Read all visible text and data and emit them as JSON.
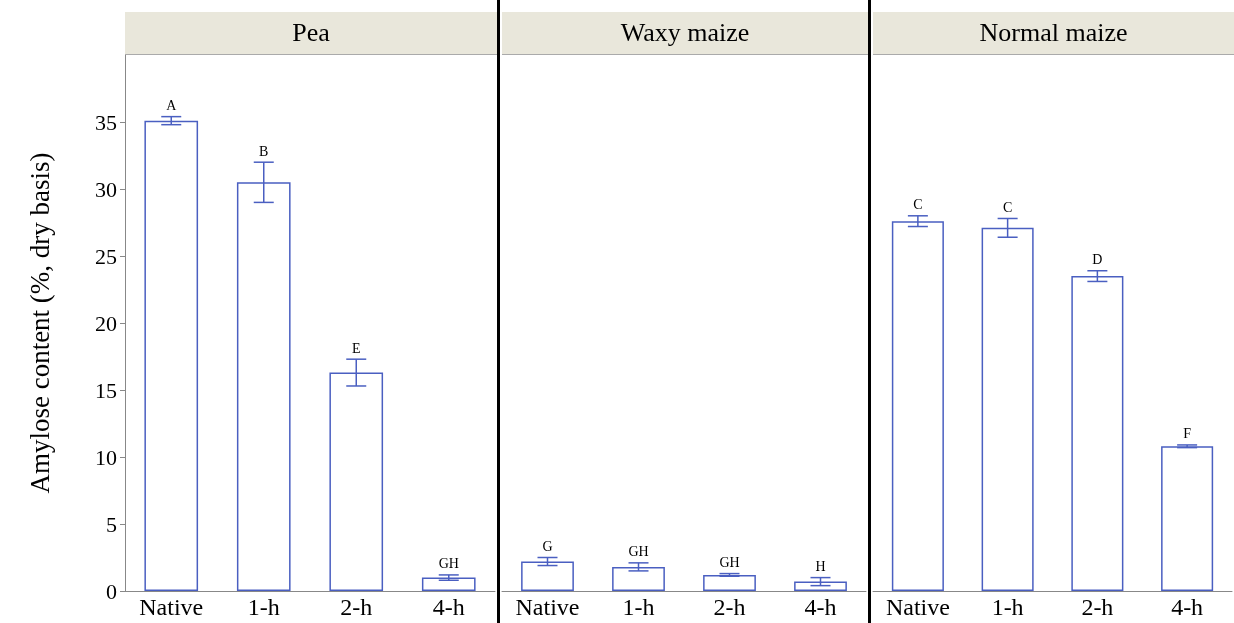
{
  "chart_data": [
    {
      "type": "bar",
      "title": "Pea",
      "ylabel": "Amylose content (%, dry basis)",
      "categories": [
        "Native",
        "1-h",
        "2-h",
        "4-h"
      ],
      "values": [
        35.1,
        30.5,
        16.3,
        1.0
      ],
      "errors": [
        0.3,
        1.5,
        1.0,
        0.2
      ],
      "color": "#4a5fc1",
      "ylim": [
        0,
        40
      ],
      "yticks": [
        0,
        5,
        10,
        15,
        20,
        25,
        30,
        35
      ],
      "annotations": [
        {
          "text": "A",
          "x": "Native",
          "y": 35.4
        },
        {
          "text": "B",
          "x": "1-h",
          "y": 32.0
        },
        {
          "text": "E",
          "x": "2-h",
          "y": 17.3
        },
        {
          "text": "GH",
          "x": "4-h",
          "y": 1.2
        }
      ]
    },
    {
      "type": "bar",
      "title": "Waxy maize",
      "categories": [
        "Native",
        "1-h",
        "2-h",
        "4-h"
      ],
      "values": [
        2.2,
        1.8,
        1.2,
        0.7
      ],
      "errors": [
        0.3,
        0.3,
        0.1,
        0.3
      ],
      "color": "#4a5fc1",
      "ylim": [
        0,
        40
      ],
      "yticks": [
        0,
        5,
        10,
        15,
        20,
        25,
        30,
        35
      ],
      "tick_labels": "x",
      "annotations": [
        {
          "text": "G",
          "x": "Native",
          "y": 2.5
        },
        {
          "text": "GH",
          "x": "1-h",
          "y": 2.1
        },
        {
          "text": "GH",
          "x": "2-h",
          "y": 1.3
        },
        {
          "text": "H",
          "x": "4-h",
          "y": 1.0
        }
      ]
    },
    {
      "type": "bar",
      "title": "Normal maize",
      "categories": [
        "Native",
        "1-h",
        "2-h",
        "4-h"
      ],
      "values": [
        27.6,
        27.1,
        23.5,
        10.8
      ],
      "errors": [
        0.4,
        0.7,
        0.4,
        0.1
      ],
      "color": "#4a5fc1",
      "ylim": [
        0,
        40
      ],
      "yticks": [
        0,
        5,
        10,
        15,
        20,
        25,
        30,
        35
      ],
      "tick_labels": "x",
      "annotations": [
        {
          "text": "C",
          "x": "Native",
          "y": 28.0
        },
        {
          "text": "C",
          "x": "1-h",
          "y": 27.8
        },
        {
          "text": "D",
          "x": "2-h",
          "y": 23.9
        },
        {
          "text": "F",
          "x": "4-h",
          "y": 10.9
        }
      ]
    }
  ]
}
